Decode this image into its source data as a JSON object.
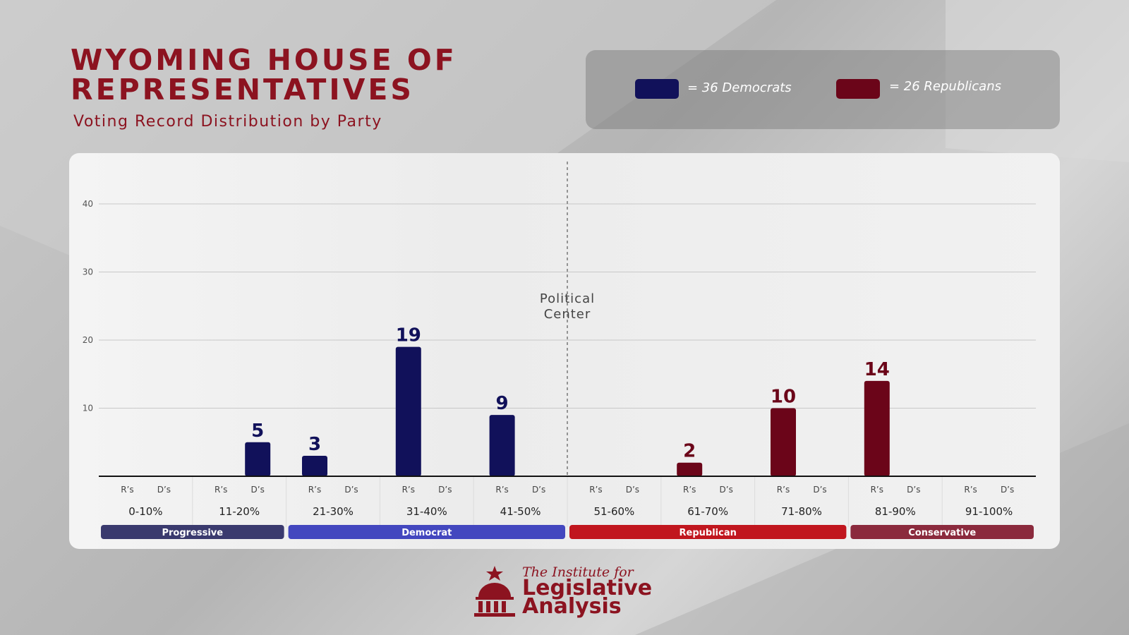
{
  "header": {
    "title": "WYOMING HOUSE OF REPRESENTATIVES",
    "subtitle": "Voting Record Distribution by Party"
  },
  "legend": {
    "democrats": {
      "label": "= 36 Democrats",
      "color": "#11115a"
    },
    "republicans": {
      "label": "= 26 Republicans",
      "color": "#6b0519"
    }
  },
  "footer": {
    "logo_line1": "The Institute for",
    "logo_line2": "Legislative",
    "logo_line3": "Analysis"
  },
  "chart_data": {
    "type": "bar",
    "y_ticks": [
      10,
      20,
      30,
      40
    ],
    "ylim": [
      0,
      40
    ],
    "grid": true,
    "center_label": [
      "Political",
      "Center"
    ],
    "categories": [
      "0-10%",
      "11-20%",
      "21-30%",
      "31-40%",
      "41-50%",
      "51-60%",
      "61-70%",
      "71-80%",
      "81-90%",
      "91-100%"
    ],
    "sublabels": [
      "R’s",
      "D’s"
    ],
    "series": [
      {
        "name": "R’s",
        "color": "#11115a",
        "values": [
          0,
          0,
          3,
          19,
          9,
          0,
          2,
          10,
          14,
          0
        ],
        "colors": [
          "#11115a",
          "#11115a",
          "#11115a",
          "#11115a",
          "#11115a",
          "#6b0519",
          "#6b0519",
          "#6b0519",
          "#6b0519",
          "#6b0519"
        ]
      },
      {
        "name": "D’s",
        "color": "#11115a",
        "values": [
          0,
          5,
          0,
          0,
          0,
          0,
          0,
          0,
          0,
          0
        ],
        "colors": [
          "#11115a",
          "#11115a",
          "#11115a",
          "#11115a",
          "#11115a",
          "#6b0519",
          "#6b0519",
          "#6b0519",
          "#6b0519",
          "#6b0519"
        ]
      }
    ],
    "groups": [
      {
        "label": "Progressive",
        "from": 0,
        "to": 1,
        "color": "#3a3a6e"
      },
      {
        "label": "Democrat",
        "from": 2,
        "to": 4,
        "color": "#4347bf"
      },
      {
        "label": "Republican",
        "from": 5,
        "to": 7,
        "color": "#c1161e"
      },
      {
        "label": "Conservative",
        "from": 8,
        "to": 9,
        "color": "#8b2a3d"
      }
    ]
  }
}
